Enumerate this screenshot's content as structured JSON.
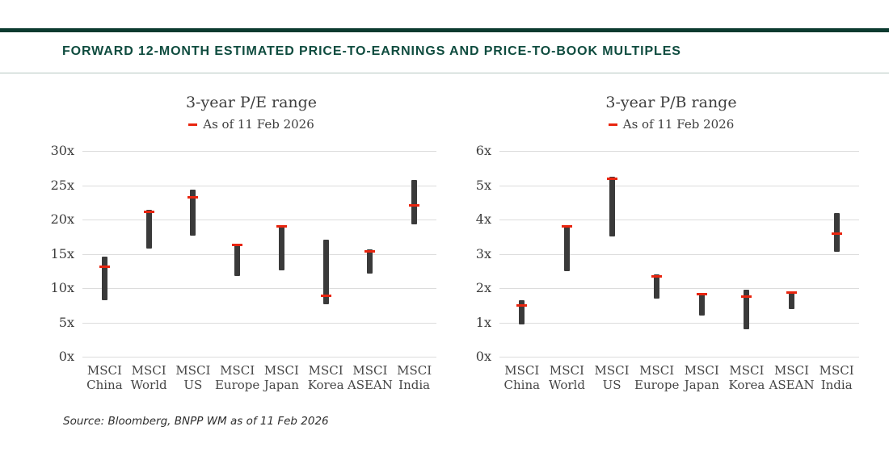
{
  "header": {
    "title": "FORWARD 12-MONTH ESTIMATED PRICE-TO-EARNINGS AND PRICE-TO-BOOK MULTIPLES",
    "accent_color": "#0b3a2f",
    "title_color": "#0f4c3f"
  },
  "chart_data": [
    {
      "type": "range-bar",
      "title": "3-year P/E range",
      "legend": {
        "label": "As of 11 Feb 2026",
        "marker_color": "#e8250f",
        "position": "top-center"
      },
      "categories": [
        "MSCI China",
        "MSCI World",
        "MSCI US",
        "MSCI Europe",
        "MSCI Japan",
        "MSCI Korea",
        "MSCI ASEAN",
        "MSCI India"
      ],
      "series": [
        {
          "name": "3-year range",
          "type": "range",
          "low": [
            8.2,
            15.8,
            17.7,
            11.8,
            12.6,
            7.7,
            12.1,
            19.3
          ],
          "high": [
            14.6,
            21.4,
            24.3,
            16.5,
            19.2,
            17.1,
            15.6,
            25.8
          ]
        },
        {
          "name": "As of 11 Feb 2026",
          "type": "marker",
          "values": [
            13.1,
            21.1,
            23.2,
            16.3,
            19.0,
            8.9,
            15.4,
            22.1
          ]
        }
      ],
      "ylim": [
        0,
        30
      ],
      "ytick_step": 5,
      "ytick_suffix": "x",
      "grid": true,
      "xlabel": "",
      "ylabel": ""
    },
    {
      "type": "range-bar",
      "title": "3-year P/B range",
      "legend": {
        "label": "As of 11 Feb 2026",
        "marker_color": "#e8250f",
        "position": "top-center"
      },
      "categories": [
        "MSCI China",
        "MSCI World",
        "MSCI US",
        "MSCI Europe",
        "MSCI Japan",
        "MSCI Korea",
        "MSCI ASEAN",
        "MSCI India"
      ],
      "series": [
        {
          "name": "3-year range",
          "type": "range",
          "low": [
            0.95,
            2.5,
            3.5,
            1.7,
            1.2,
            0.8,
            1.4,
            3.05
          ],
          "high": [
            1.65,
            3.8,
            5.25,
            2.4,
            1.85,
            1.95,
            1.9,
            4.2
          ]
        },
        {
          "name": "As of 11 Feb 2026",
          "type": "marker",
          "values": [
            1.5,
            3.8,
            5.2,
            2.35,
            1.82,
            1.75,
            1.88,
            3.6
          ]
        }
      ],
      "ylim": [
        0,
        6
      ],
      "ytick_step": 1,
      "ytick_suffix": "x",
      "grid": true,
      "xlabel": "",
      "ylabel": ""
    }
  ],
  "source": {
    "text": "Source: Bloomberg, BNPP WM as of 11 Feb 2026"
  },
  "colors": {
    "range_bar": "#3a3a3a",
    "marker": "#e8250f",
    "gridline": "#dcdcdc",
    "axis_text": "#3d3d3d"
  }
}
